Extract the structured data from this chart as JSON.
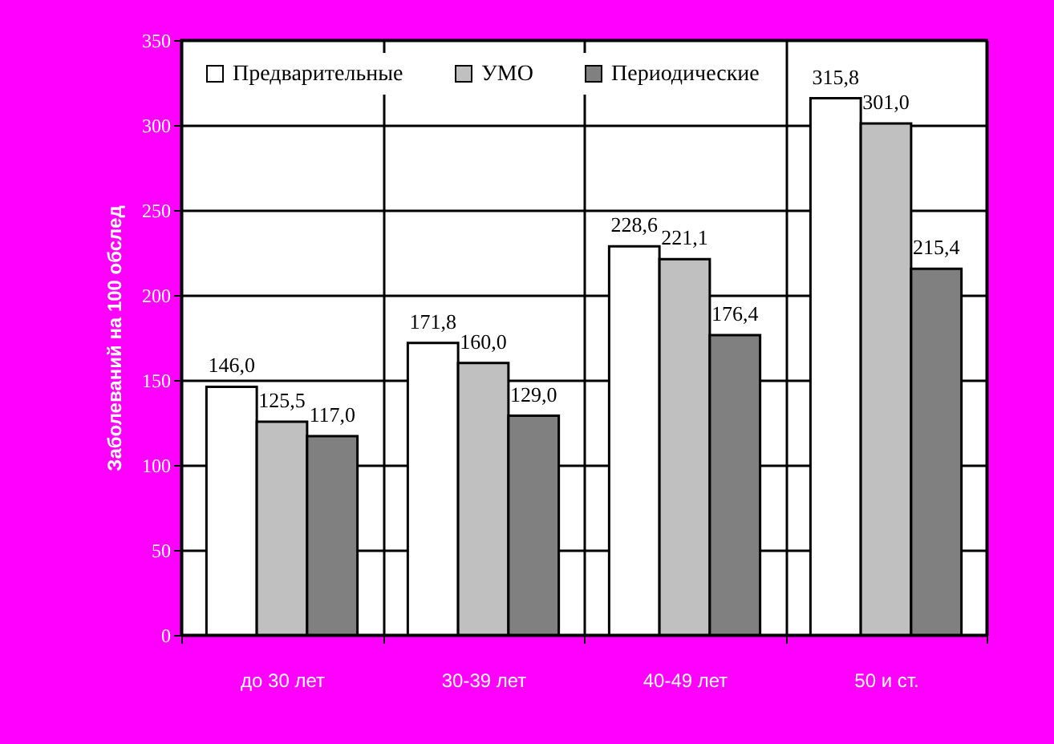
{
  "chart_data": {
    "type": "bar",
    "ylabel": "Заболеваний на 100 обслед",
    "categories": [
      "до 30 лет",
      "30-39 лет",
      "40-49 лет",
      "50 и ст."
    ],
    "series": [
      {
        "name": "Предварительные",
        "color": "#ffffff",
        "values": [
          146.0,
          171.8,
          228.6,
          315.8
        ],
        "value_labels": [
          "146,0",
          "171,8",
          "228,6",
          "315,8"
        ]
      },
      {
        "name": "УМО",
        "color": "#c0c0c0",
        "values": [
          125.5,
          160.0,
          221.1,
          301.0
        ],
        "value_labels": [
          "125,5",
          "160,0",
          "221,1",
          "301,0"
        ]
      },
      {
        "name": "Периодические",
        "color": "#808080",
        "values": [
          117.0,
          129.0,
          176.4,
          215.4
        ],
        "value_labels": [
          "117,0",
          "129,0",
          "176,4",
          "215,4"
        ]
      }
    ],
    "ylim": [
      0,
      350
    ],
    "yticks": [
      0,
      50,
      100,
      150,
      200,
      250,
      300,
      350
    ],
    "grid": true,
    "legend": "top left"
  }
}
